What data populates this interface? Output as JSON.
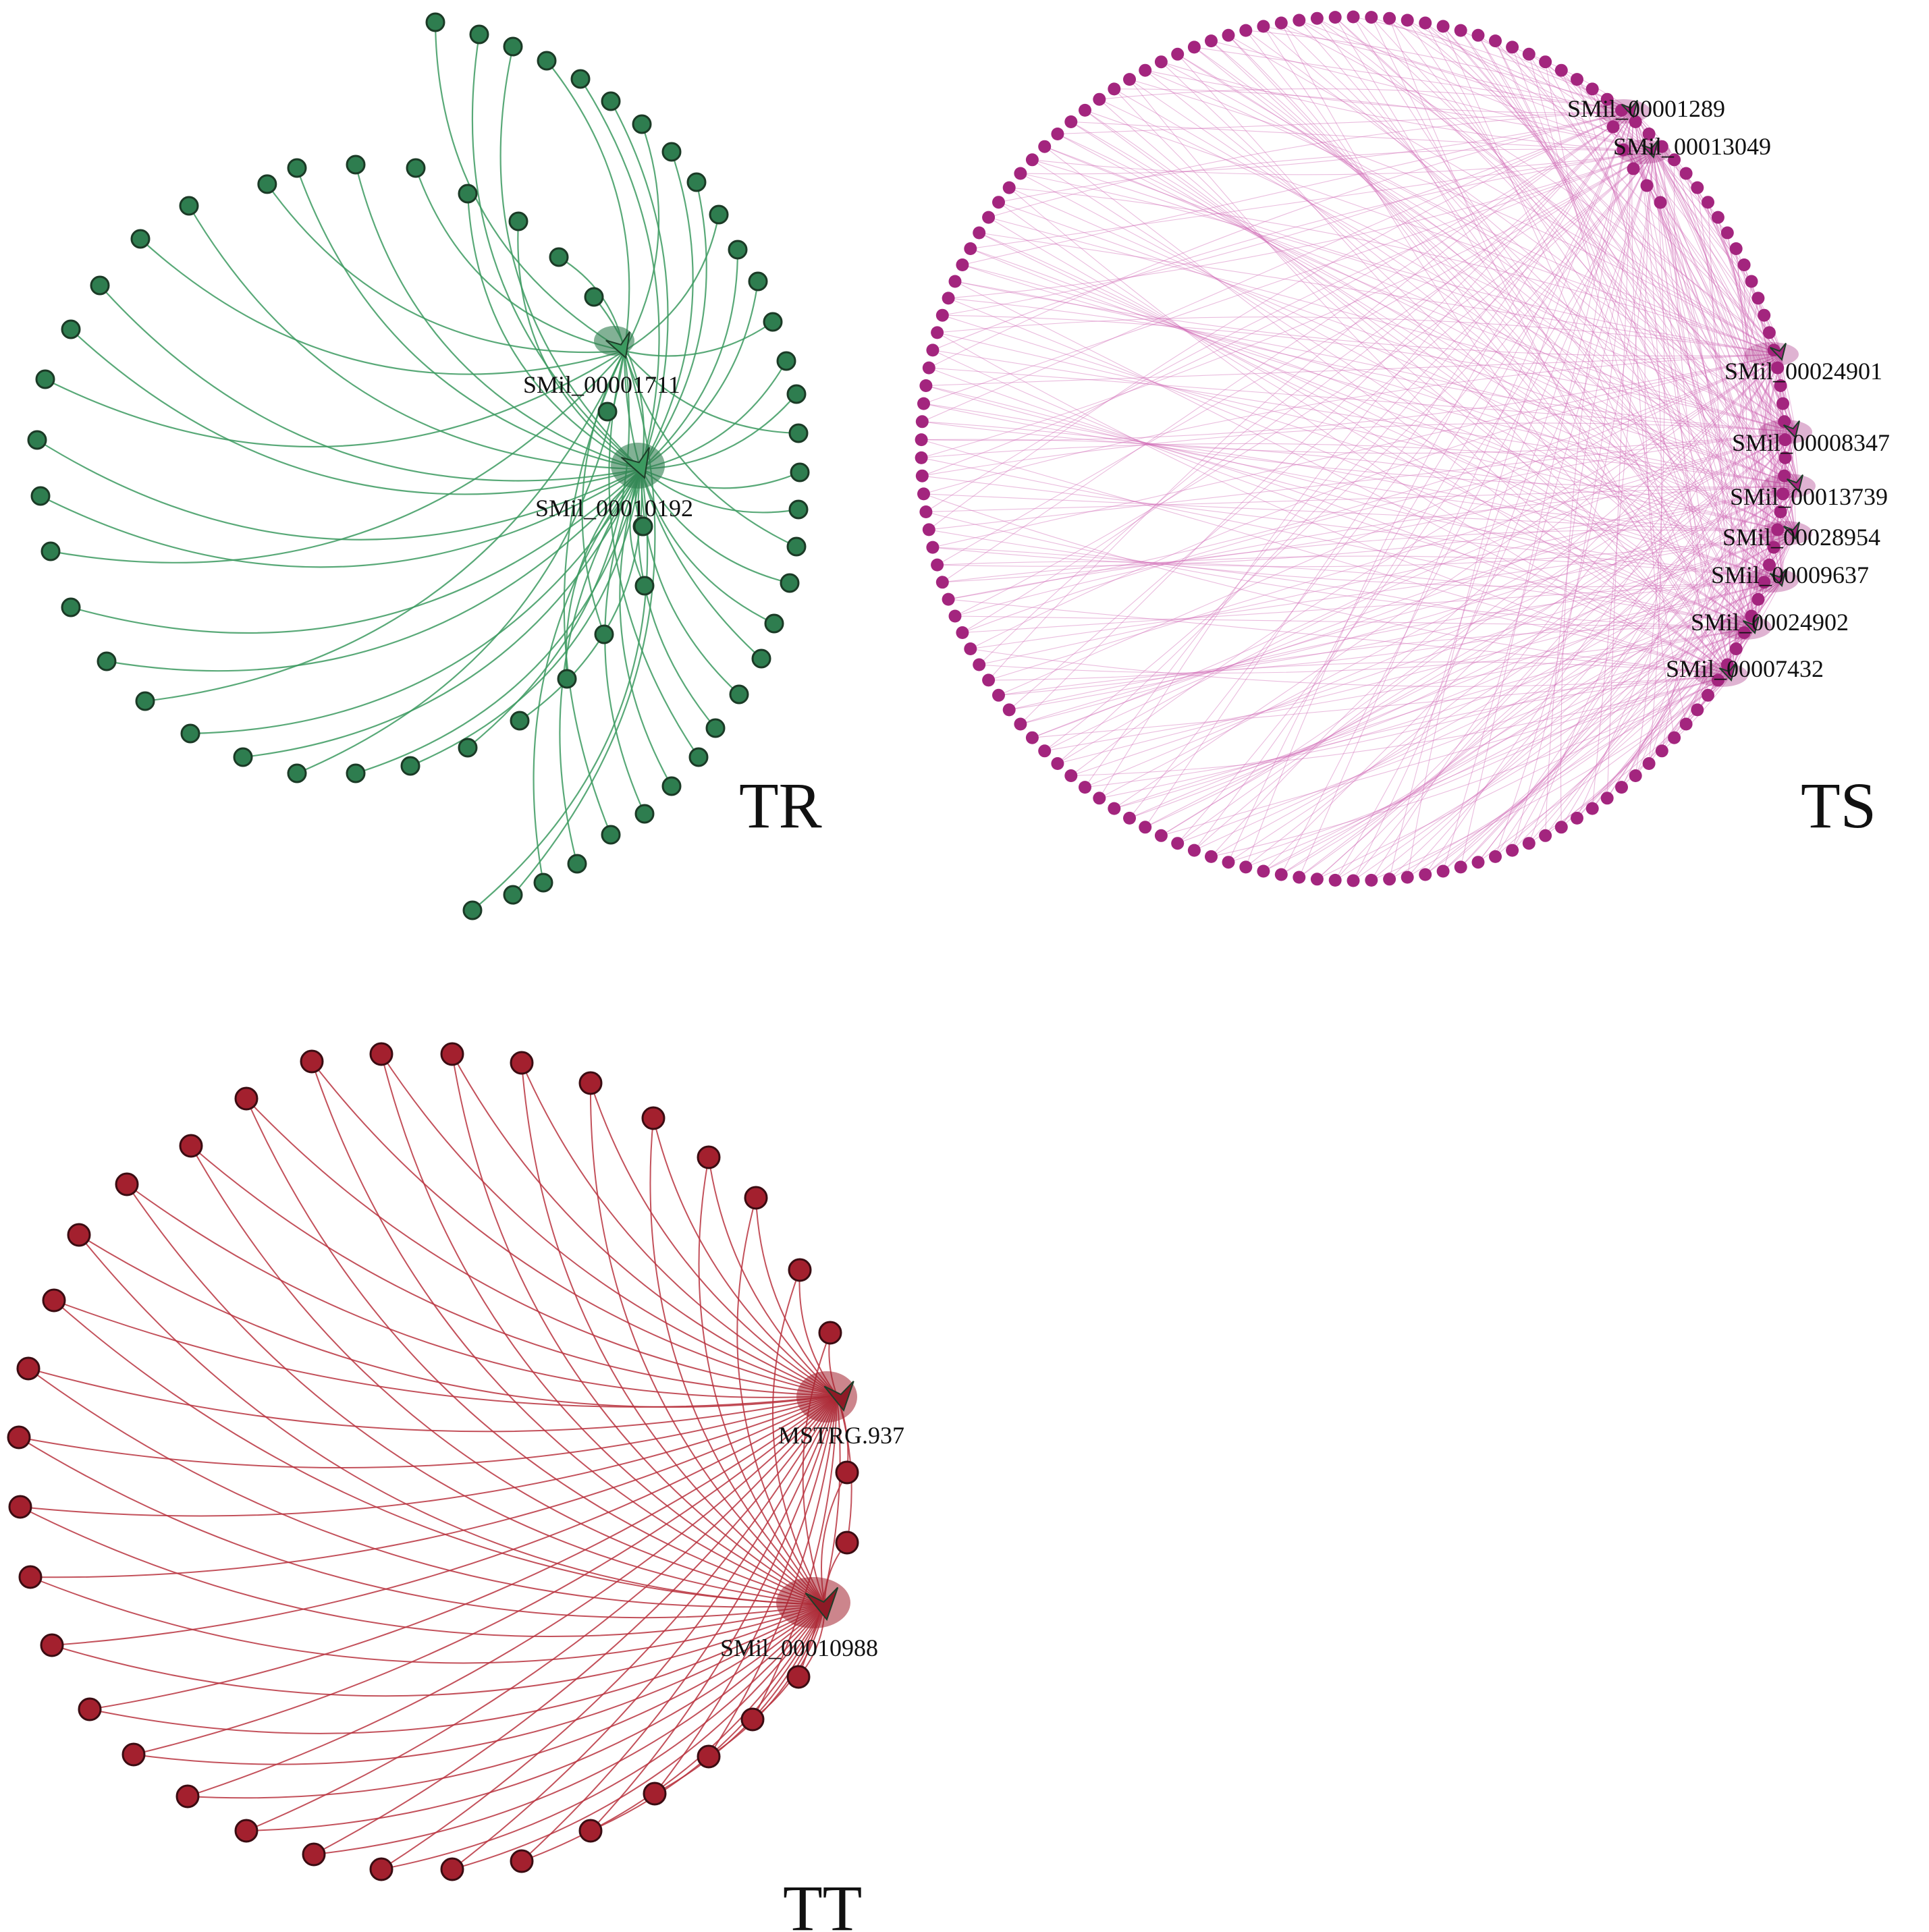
{
  "panels": [
    {
      "id": "tr",
      "tag": "TR",
      "node_color": "#2e7d4f",
      "edge_color": "#3c9a60",
      "hub_labels": [
        "SMil_00001711",
        "SMil_00010192"
      ]
    },
    {
      "id": "ts",
      "tag": "TS",
      "node_color": "#a3257e",
      "edge_color": "#d06bb5",
      "hub_labels": [
        "SMil_00001289",
        "SMil_00013049",
        "SMil_00024901",
        "SMil_00008347",
        "SMil_00013739",
        "SMil_00028954",
        "SMil_00009637",
        "SMil_00024902",
        "SMil_00007432"
      ]
    },
    {
      "id": "tt",
      "tag": "TT",
      "node_color": "#a3202e",
      "edge_color": "#b8323e",
      "hub_labels": [
        "MSTRG.937",
        "SMil_00010988"
      ]
    }
  ]
}
